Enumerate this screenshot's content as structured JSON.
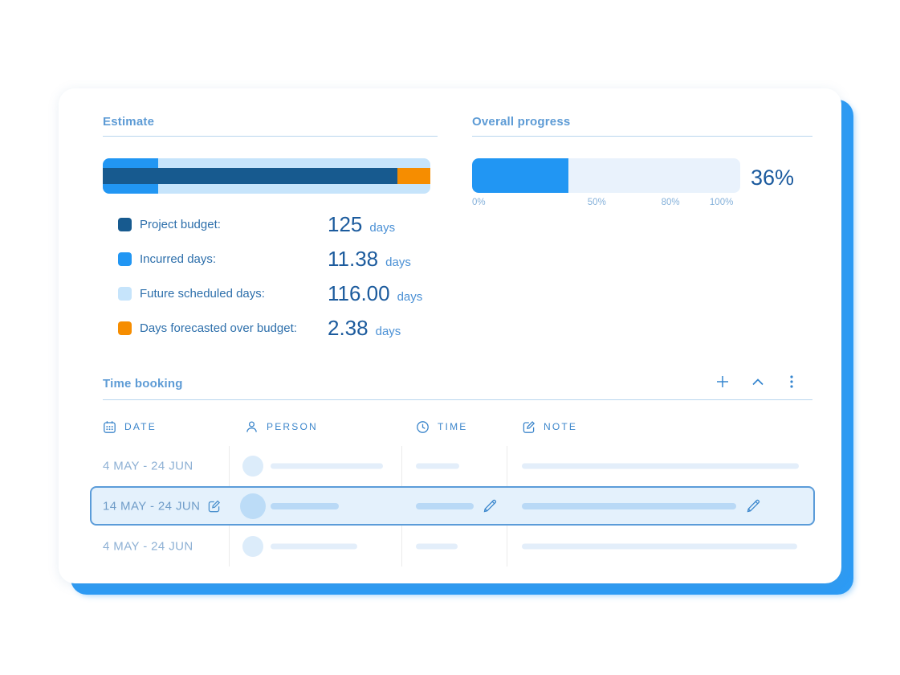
{
  "colors": {
    "accent_blue": "#2196f3",
    "budget_dark_blue": "#175a8f",
    "scheduled_light_blue": "#c6e4fb",
    "over_budget_orange": "#f68d00",
    "shadow_blue": "#2d9bf4",
    "selected_row_border": "#5b9cd9"
  },
  "estimate": {
    "title": "Estimate",
    "bar": {
      "incurred_pct": 17,
      "budget_pct": 90,
      "over_pct": 10
    },
    "legend": [
      {
        "label": "Project budget:",
        "value": "125",
        "unit": "days",
        "swatch": "#175a8f"
      },
      {
        "label": "Incurred days:",
        "value": "11.38",
        "unit": "days",
        "swatch": "#2196f3"
      },
      {
        "label": "Future scheduled days:",
        "value": "116.00",
        "unit": "days",
        "swatch": "#c6e4fb"
      },
      {
        "label": "Days forecasted over budget:",
        "value": "2.38",
        "unit": "days",
        "swatch": "#f68d00"
      }
    ]
  },
  "overall_progress": {
    "title": "Overall progress",
    "percent": 36,
    "percent_label": "36%",
    "ticks": [
      {
        "label": "0%",
        "pos": 0
      },
      {
        "label": "50%",
        "pos": 46.5
      },
      {
        "label": "80%",
        "pos": 74
      },
      {
        "label": "100%",
        "pos": 93
      }
    ]
  },
  "time_booking": {
    "title": "Time booking",
    "actions": [
      {
        "name": "add",
        "icon": "plus-icon"
      },
      {
        "name": "collapse",
        "icon": "chevron-up-icon"
      },
      {
        "name": "menu",
        "icon": "kebab-menu-icon"
      }
    ],
    "columns": [
      {
        "label": "DATE",
        "icon": "calendar-icon"
      },
      {
        "label": "PERSON",
        "icon": "person-icon"
      },
      {
        "label": "TIME",
        "icon": "clock-icon"
      },
      {
        "label": "NOTE",
        "icon": "note-icon"
      }
    ],
    "rows": [
      {
        "date": "4 MAY - 24 JUN",
        "selected": false
      },
      {
        "date": "14 MAY - 24 JUN",
        "selected": true
      },
      {
        "date": "4 MAY - 24 JUN",
        "selected": false
      }
    ]
  }
}
